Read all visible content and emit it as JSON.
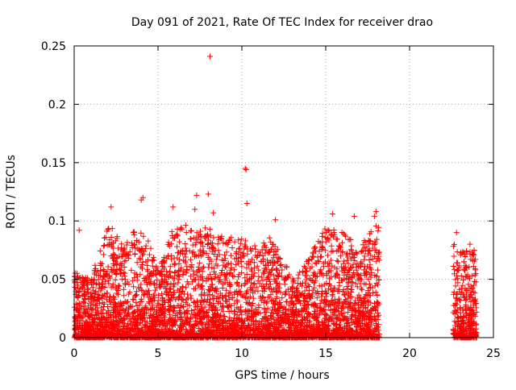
{
  "chart_data": {
    "type": "scatter",
    "title": "Day 091 of 2021, Rate Of TEC Index for receiver drao",
    "xlabel": "GPS time / hours",
    "ylabel": "ROTI / TECUs",
    "xlim": [
      0,
      25
    ],
    "ylim": [
      0,
      0.25
    ],
    "x_ticks": [
      0,
      5,
      10,
      15,
      20,
      25
    ],
    "y_ticks": [
      0,
      0.05,
      0.1,
      0.15,
      0.2,
      0.25
    ],
    "x_tick_labels": [
      "0",
      "5",
      "10",
      "15",
      "20",
      "25"
    ],
    "y_tick_labels": [
      "0",
      "0.05",
      "0.1",
      "0.15",
      "0.2",
      "0.25"
    ],
    "grid": true,
    "marker": "plus",
    "series_color": "#ff0000",
    "coverage_segments": [
      [
        0,
        18.2
      ],
      [
        22.6,
        24.0
      ]
    ],
    "notable_points": [
      {
        "x": 8.1,
        "y": 0.241
      },
      {
        "x": 10.2,
        "y": 0.145
      },
      {
        "x": 10.25,
        "y": 0.144
      },
      {
        "x": 10.3,
        "y": 0.115
      },
      {
        "x": 4.1,
        "y": 0.12
      },
      {
        "x": 4.0,
        "y": 0.118
      },
      {
        "x": 7.3,
        "y": 0.122
      },
      {
        "x": 8.0,
        "y": 0.123
      },
      {
        "x": 2.2,
        "y": 0.112
      },
      {
        "x": 5.9,
        "y": 0.112
      },
      {
        "x": 7.2,
        "y": 0.11
      },
      {
        "x": 8.3,
        "y": 0.107
      },
      {
        "x": 15.4,
        "y": 0.106
      },
      {
        "x": 16.7,
        "y": 0.104
      },
      {
        "x": 18.0,
        "y": 0.108
      },
      {
        "x": 17.9,
        "y": 0.104
      },
      {
        "x": 12.0,
        "y": 0.101
      },
      {
        "x": 0.3,
        "y": 0.092
      },
      {
        "x": 22.8,
        "y": 0.09
      },
      {
        "x": 23.6,
        "y": 0.08
      }
    ],
    "envelope_hourly": [
      {
        "hour": 0,
        "max": 0.06
      },
      {
        "hour": 1,
        "max": 0.05
      },
      {
        "hour": 2,
        "max": 0.1
      },
      {
        "hour": 3,
        "max": 0.08
      },
      {
        "hour": 4,
        "max": 0.1
      },
      {
        "hour": 5,
        "max": 0.06
      },
      {
        "hour": 6,
        "max": 0.1
      },
      {
        "hour": 7,
        "max": 0.095
      },
      {
        "hour": 8,
        "max": 0.095
      },
      {
        "hour": 9,
        "max": 0.085
      },
      {
        "hour": 10,
        "max": 0.09
      },
      {
        "hour": 11,
        "max": 0.08
      },
      {
        "hour": 12,
        "max": 0.09
      },
      {
        "hour": 13,
        "max": 0.05
      },
      {
        "hour": 14,
        "max": 0.07
      },
      {
        "hour": 15,
        "max": 0.095
      },
      {
        "hour": 16,
        "max": 0.09
      },
      {
        "hour": 17,
        "max": 0.08
      },
      {
        "hour": 18,
        "max": 0.1
      },
      {
        "hour": 22,
        "max": 0.09
      },
      {
        "hour": 23,
        "max": 0.075
      }
    ]
  }
}
